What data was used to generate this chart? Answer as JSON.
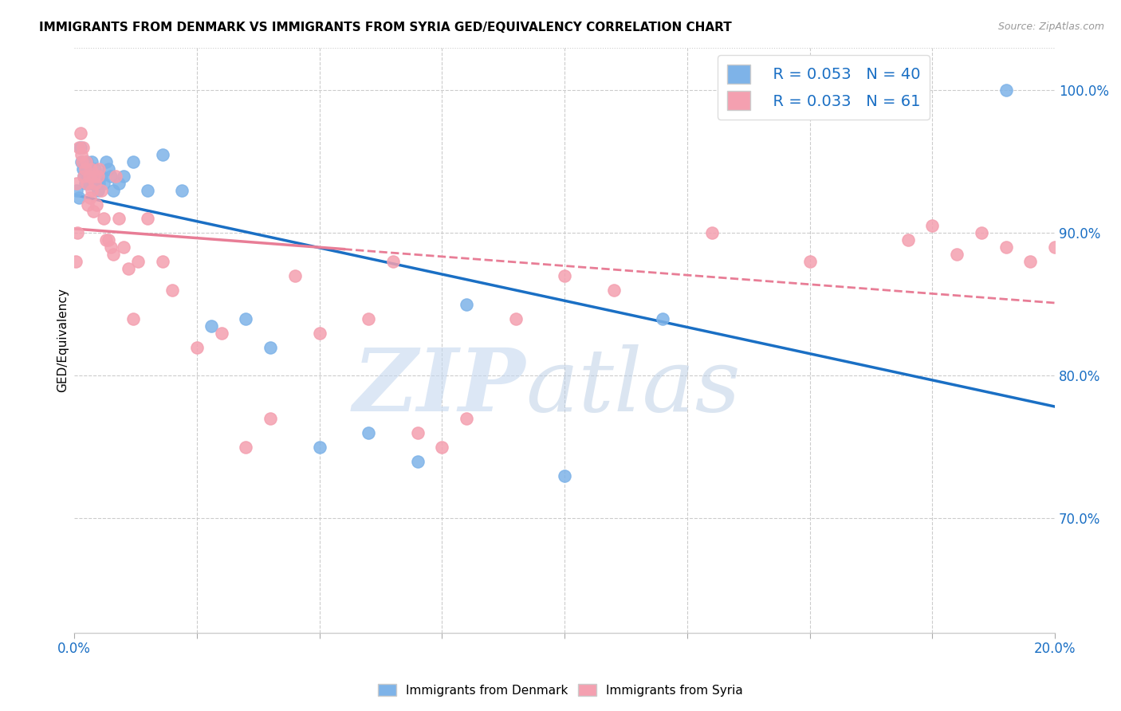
{
  "title": "IMMIGRANTS FROM DENMARK VS IMMIGRANTS FROM SYRIA GED/EQUIVALENCY CORRELATION CHART",
  "source": "Source: ZipAtlas.com",
  "ylabel": "GED/Equivalency",
  "yticks": [
    "100.0%",
    "90.0%",
    "80.0%",
    "70.0%"
  ],
  "ytick_vals": [
    1.0,
    0.9,
    0.8,
    0.7
  ],
  "xlim": [
    0.0,
    0.2
  ],
  "ylim": [
    0.62,
    1.03
  ],
  "denmark_color": "#7EB3E8",
  "syria_color": "#F4A0B0",
  "denmark_R": 0.053,
  "denmark_N": 40,
  "syria_R": 0.033,
  "syria_N": 61,
  "denmark_line_color": "#1a6fc4",
  "syria_line_color": "#e87d96",
  "legend_text_color": "#1a6fc4",
  "denmark_x": [
    0.0005,
    0.001,
    0.0012,
    0.0015,
    0.0018,
    0.002,
    0.0022,
    0.0025,
    0.0028,
    0.003,
    0.0032,
    0.0035,
    0.0038,
    0.004,
    0.0042,
    0.0045,
    0.0048,
    0.005,
    0.0055,
    0.006,
    0.0065,
    0.007,
    0.0075,
    0.008,
    0.009,
    0.01,
    0.012,
    0.015,
    0.018,
    0.022,
    0.028,
    0.035,
    0.04,
    0.05,
    0.06,
    0.07,
    0.08,
    0.1,
    0.12,
    0.19
  ],
  "denmark_y": [
    0.93,
    0.925,
    0.96,
    0.95,
    0.945,
    0.94,
    0.935,
    0.95,
    0.94,
    0.935,
    0.94,
    0.95,
    0.935,
    0.94,
    0.945,
    0.935,
    0.93,
    0.935,
    0.94,
    0.935,
    0.95,
    0.945,
    0.94,
    0.93,
    0.935,
    0.94,
    0.95,
    0.93,
    0.955,
    0.93,
    0.835,
    0.84,
    0.82,
    0.75,
    0.76,
    0.74,
    0.85,
    0.73,
    0.84,
    1.0
  ],
  "syria_x": [
    0.0003,
    0.0005,
    0.0007,
    0.001,
    0.0012,
    0.0014,
    0.0016,
    0.0018,
    0.002,
    0.0022,
    0.0024,
    0.0026,
    0.0028,
    0.003,
    0.0032,
    0.0034,
    0.0036,
    0.0038,
    0.004,
    0.0042,
    0.0045,
    0.0048,
    0.005,
    0.0055,
    0.006,
    0.0065,
    0.007,
    0.0075,
    0.008,
    0.0085,
    0.009,
    0.01,
    0.011,
    0.012,
    0.013,
    0.015,
    0.018,
    0.02,
    0.025,
    0.03,
    0.035,
    0.04,
    0.045,
    0.05,
    0.06,
    0.065,
    0.07,
    0.075,
    0.08,
    0.09,
    0.1,
    0.11,
    0.13,
    0.15,
    0.17,
    0.175,
    0.18,
    0.185,
    0.19,
    0.195,
    0.2
  ],
  "syria_y": [
    0.88,
    0.935,
    0.9,
    0.96,
    0.97,
    0.955,
    0.95,
    0.96,
    0.94,
    0.945,
    0.95,
    0.935,
    0.92,
    0.94,
    0.925,
    0.945,
    0.93,
    0.915,
    0.94,
    0.935,
    0.92,
    0.94,
    0.945,
    0.93,
    0.91,
    0.895,
    0.895,
    0.89,
    0.885,
    0.94,
    0.91,
    0.89,
    0.875,
    0.84,
    0.88,
    0.91,
    0.88,
    0.86,
    0.82,
    0.83,
    0.75,
    0.77,
    0.87,
    0.83,
    0.84,
    0.88,
    0.76,
    0.75,
    0.77,
    0.84,
    0.87,
    0.86,
    0.9,
    0.88,
    0.895,
    0.905,
    0.885,
    0.9,
    0.89,
    0.88,
    0.89
  ],
  "syria_line_xmax": 0.055,
  "xtick_positions": [
    0.0,
    0.025,
    0.05,
    0.075,
    0.1,
    0.125,
    0.15,
    0.175,
    0.2
  ],
  "grid_x_positions": [
    0.025,
    0.05,
    0.075,
    0.1,
    0.125,
    0.15,
    0.175
  ]
}
